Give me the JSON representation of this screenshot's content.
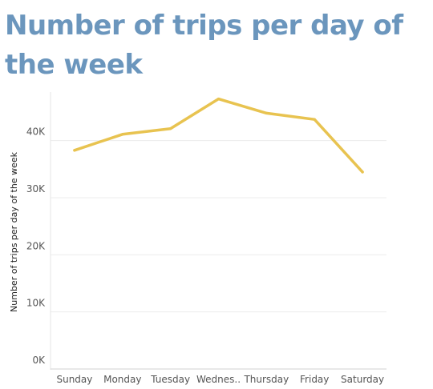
{
  "title": "Number of trips per day of the week",
  "chart_data": {
    "type": "line",
    "title": "Number of trips per day of the week",
    "xlabel": "",
    "ylabel": "Number of trips per day of the week",
    "categories": [
      "Sunday",
      "Monday",
      "Tuesday",
      "Wednes..",
      "Thursday",
      "Friday",
      "Saturday"
    ],
    "series": [
      {
        "values": [
          38300,
          41100,
          42100,
          47300,
          44800,
          43700,
          34500
        ]
      }
    ],
    "ylim": [
      0,
      48500
    ],
    "yticks": [
      0,
      10000,
      20000,
      30000,
      40000
    ],
    "ytick_labels": [
      "0K",
      "10K",
      "20K",
      "30K",
      "40K"
    ],
    "grid": true,
    "line_color": "#e8c350",
    "title_color": "#6b96bd"
  }
}
